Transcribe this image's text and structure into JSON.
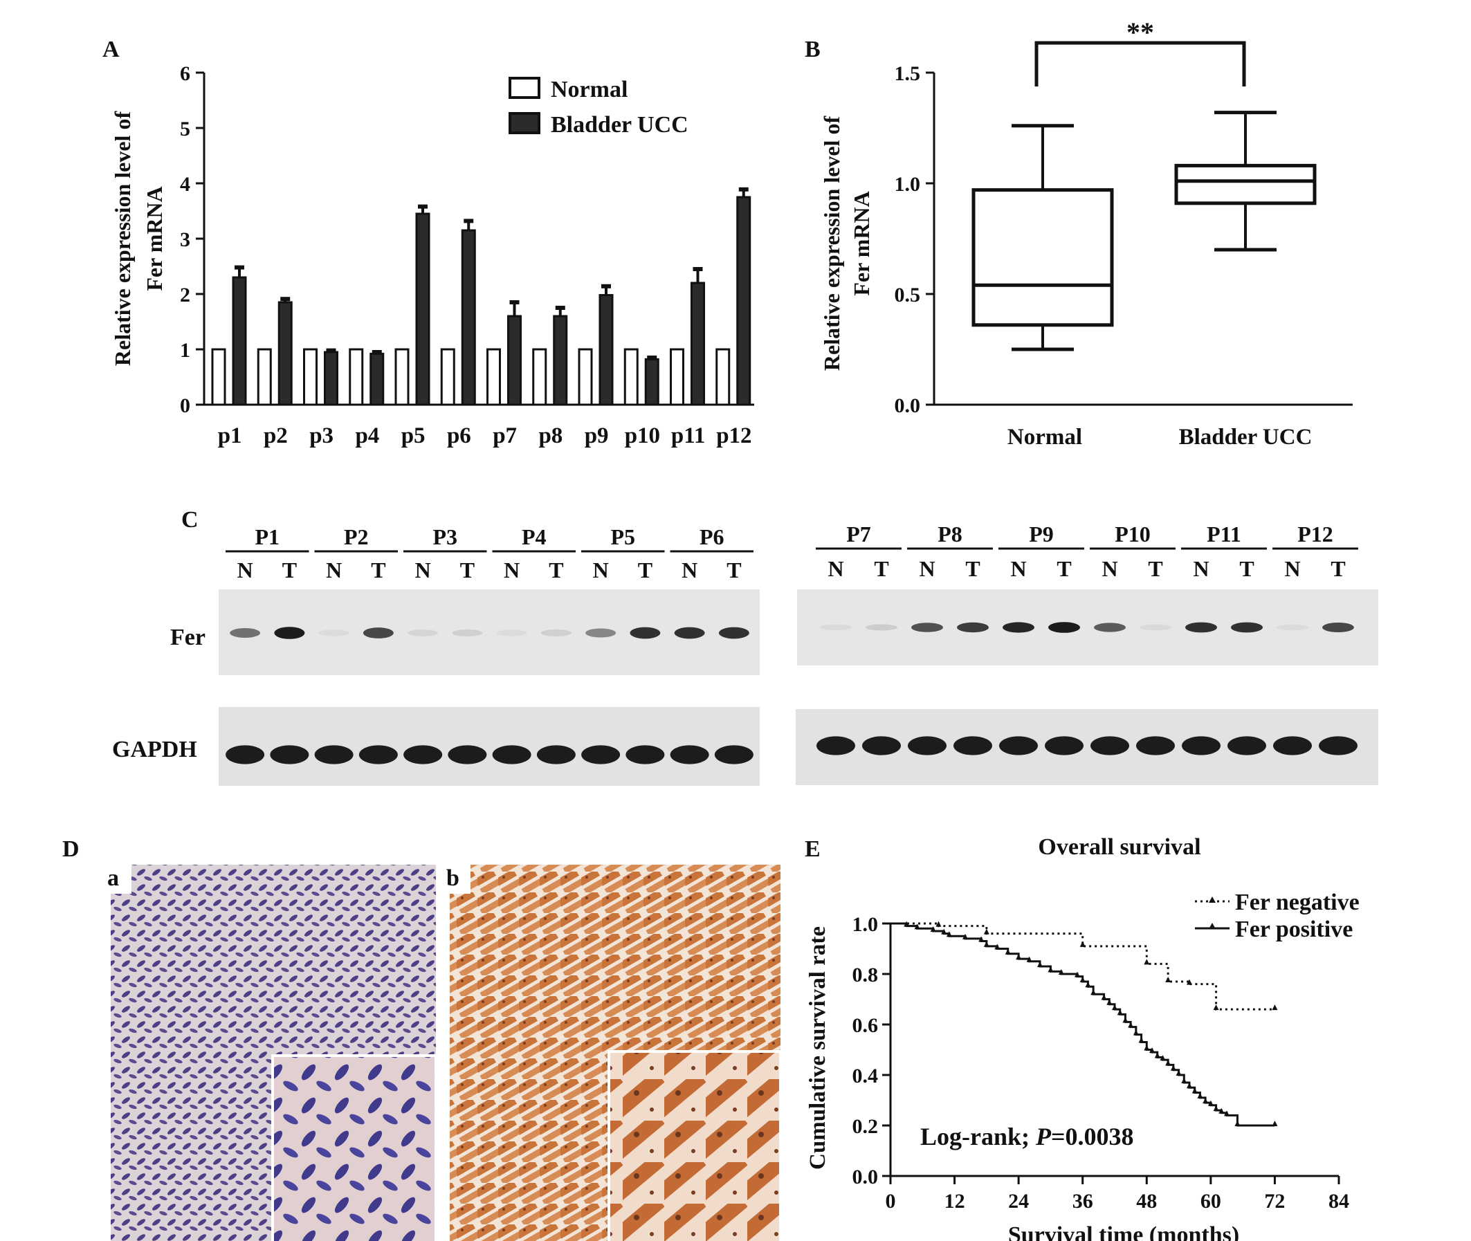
{
  "panels": {
    "A": "A",
    "B": "B",
    "C": "C",
    "D": "D",
    "E": "E",
    "Da": "a",
    "Db": "b"
  },
  "colors": {
    "normal_fill": "#ffffff",
    "ucc_fill": "#2b2b2b",
    "ink": "#111111",
    "blot_bg": "#e6e6e6",
    "ihc_neg": "#5a4a8a",
    "ihc_pos": "#c8743a"
  },
  "chart_data": [
    {
      "id": "A",
      "type": "bar",
      "ylabel": [
        "Relative expression level of",
        "Fer mRNA"
      ],
      "ylim": [
        0,
        6
      ],
      "yticks": [
        "0",
        "1",
        "2",
        "3",
        "4",
        "5",
        "6"
      ],
      "categories": [
        "p1",
        "p2",
        "p3",
        "p4",
        "p5",
        "p6",
        "p7",
        "p8",
        "p9",
        "p10",
        "p11",
        "p12"
      ],
      "series": [
        {
          "name": "Normal",
          "values": [
            1,
            1,
            1,
            1,
            1,
            1,
            1,
            1,
            1,
            1,
            1,
            1
          ],
          "errors": [
            0,
            0,
            0,
            0,
            0,
            0,
            0,
            0,
            0,
            0,
            0,
            0
          ]
        },
        {
          "name": "Bladder UCC",
          "values": [
            2.3,
            1.85,
            0.95,
            0.92,
            3.45,
            3.15,
            1.6,
            1.6,
            1.98,
            0.82,
            2.2,
            3.75
          ],
          "errors": [
            0.18,
            0.06,
            0.03,
            0.03,
            0.13,
            0.17,
            0.25,
            0.15,
            0.16,
            0.03,
            0.25,
            0.14
          ]
        }
      ],
      "legend_position": "top-right"
    },
    {
      "id": "B",
      "type": "box",
      "ylabel": [
        "Relative expression level of",
        "Fer mRNA"
      ],
      "ylim": [
        0,
        1.5
      ],
      "yticks": [
        "0.0",
        "0.5",
        "1.0",
        "1.5"
      ],
      "categories": [
        "Normal",
        "Bladder UCC"
      ],
      "boxes": [
        {
          "min": 0.25,
          "q1": 0.36,
          "median": 0.54,
          "q3": 0.97,
          "max": 1.26
        },
        {
          "min": 0.7,
          "q1": 0.91,
          "median": 1.01,
          "q3": 1.08,
          "max": 1.32
        }
      ],
      "significance": "**"
    },
    {
      "id": "E",
      "type": "line",
      "title": "Overall survival",
      "xlabel": "Survival time (months)",
      "ylabel": "Cumulative survival rate",
      "xlim": [
        0,
        84
      ],
      "ylim": [
        0,
        1.0
      ],
      "xticks": [
        "0",
        "12",
        "24",
        "36",
        "48",
        "60",
        "72",
        "84"
      ],
      "yticks": [
        "0.0",
        "0.2",
        "0.4",
        "0.6",
        "0.8",
        "1.0"
      ],
      "annotation_prefix": "Log-rank; ",
      "annotation_p": "P",
      "annotation_value": "=0.0038",
      "series": [
        {
          "name": "Fer negative",
          "style": "dotted",
          "x": [
            0,
            9,
            18,
            36,
            48,
            52,
            56,
            61,
            72
          ],
          "y": [
            1.0,
            0.99,
            0.96,
            0.91,
            0.84,
            0.77,
            0.76,
            0.66,
            0.66
          ]
        },
        {
          "name": "Fer positive",
          "style": "solid",
          "x": [
            0,
            3,
            5,
            8,
            10,
            11,
            14,
            17,
            18,
            20,
            22,
            24,
            26,
            28,
            30,
            32,
            35,
            36,
            37,
            38,
            40,
            41,
            42,
            43,
            44,
            45,
            46,
            47,
            48,
            49,
            50,
            51,
            52,
            53,
            54,
            55,
            56,
            57,
            58,
            59,
            60,
            61,
            62,
            63,
            65,
            72
          ],
          "y": [
            1.0,
            0.99,
            0.98,
            0.97,
            0.96,
            0.95,
            0.94,
            0.93,
            0.91,
            0.9,
            0.88,
            0.86,
            0.85,
            0.83,
            0.81,
            0.8,
            0.79,
            0.77,
            0.75,
            0.72,
            0.7,
            0.68,
            0.66,
            0.64,
            0.61,
            0.59,
            0.56,
            0.53,
            0.5,
            0.49,
            0.47,
            0.46,
            0.44,
            0.42,
            0.4,
            0.37,
            0.35,
            0.33,
            0.31,
            0.29,
            0.28,
            0.26,
            0.25,
            0.24,
            0.2,
            0.2
          ]
        }
      ]
    }
  ],
  "blot": {
    "left_patients": [
      "P1",
      "P2",
      "P3",
      "P4",
      "P5",
      "P6"
    ],
    "right_patients": [
      "P7",
      "P8",
      "P9",
      "P10",
      "P11",
      "P12"
    ],
    "lane_n": "N",
    "lane_t": "T",
    "rows": [
      "Fer",
      "GAPDH"
    ],
    "fer_intensity_left": [
      0.55,
      0.95,
      0.0,
      0.75,
      0.08,
      0.1,
      0.05,
      0.1,
      0.45,
      0.85,
      0.85,
      0.85
    ],
    "fer_intensity_right": [
      0.05,
      0.12,
      0.7,
      0.8,
      0.9,
      0.95,
      0.65,
      0.06,
      0.85,
      0.85,
      0.05,
      0.75
    ]
  },
  "ihc": {
    "a_label": "a",
    "b_label": "b"
  }
}
